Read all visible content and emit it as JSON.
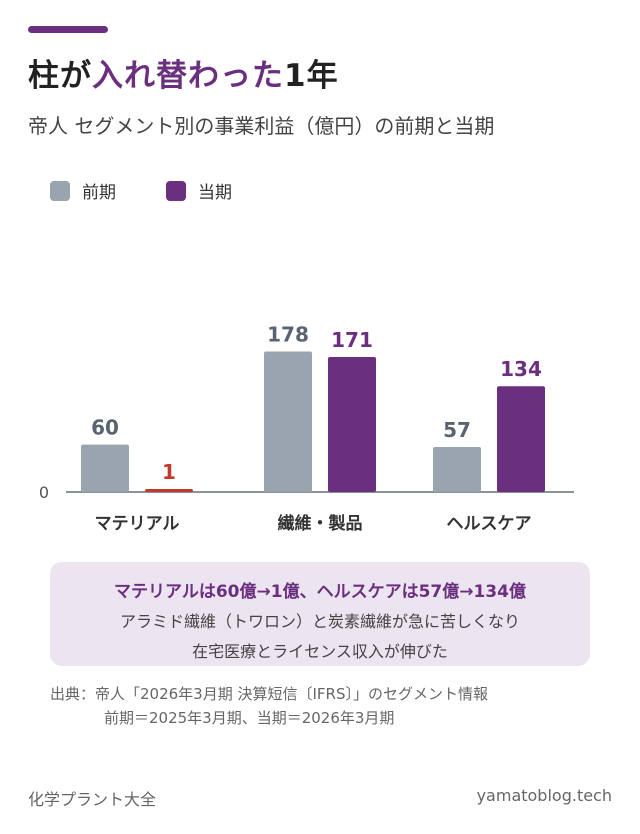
{
  "title": {
    "prefix": "柱が",
    "highlight": "入れ替わった",
    "suffix": "1年"
  },
  "subtitle": "帝人 セグメント別の事業利益（億円）の前期と当期",
  "legend": [
    {
      "label": "前期",
      "color": "#9aa4ae"
    },
    {
      "label": "当期",
      "color": "#6a2f7e"
    }
  ],
  "chart_data": {
    "type": "bar",
    "categories": [
      "マテリアル",
      "繊維・製品",
      "ヘルスケア"
    ],
    "series": [
      {
        "name": "前期",
        "values": [
          60,
          178,
          57
        ],
        "color": "#9aa4ae"
      },
      {
        "name": "当期",
        "values": [
          1,
          171,
          134
        ],
        "color": "#6a2f7e"
      }
    ],
    "highlight": {
      "category": "マテリアル",
      "series": "当期",
      "color": "#c0392b"
    },
    "ylim": [
      0,
      190
    ],
    "yticks": [
      "0"
    ],
    "grid": false,
    "legend": "top-left"
  },
  "callout": {
    "headline": "マテリアルは60億→1億、ヘルスケアは57億→134億",
    "line1": "アラミド繊維（トワロン）と炭素繊維が急に苦しくなり",
    "line2": "在宅医療とライセンス収入が伸びた"
  },
  "source": {
    "line1": "出典：帝人「2026年3月期 決算短信〔IFRS〕」のセグメント情報",
    "line2": "前期＝2025年3月期、当期＝2026年3月期"
  },
  "footer": {
    "left": "化学プラント大全",
    "right": "yamatoblog.tech"
  }
}
